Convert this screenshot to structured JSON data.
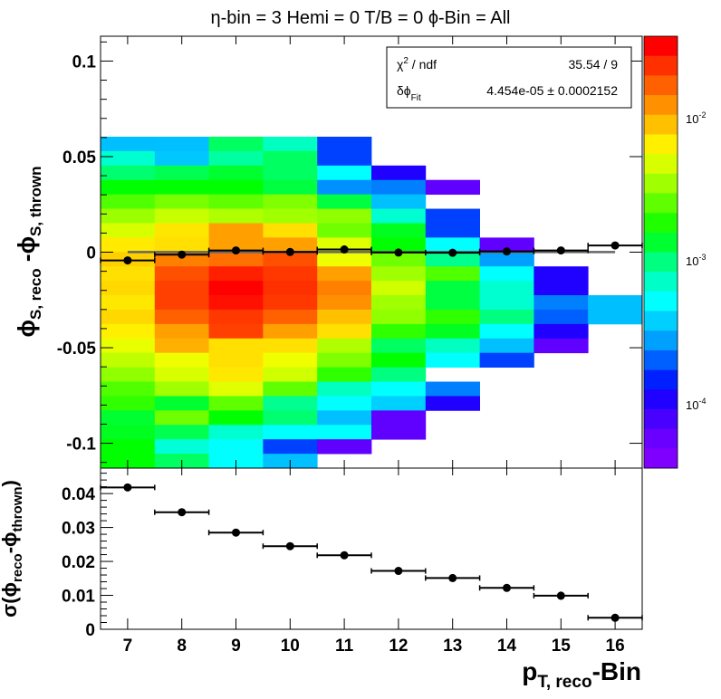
{
  "title": "η-bin = 3 Hemi = 0 T/B = 0   ϕ-Bin = All",
  "stats": {
    "row1_label": "χ² / ndf",
    "row1_value": "35.54 / 9",
    "row2_label": "δϕ_Fit",
    "row2_value": "4.454e-05  ± 0.0002152"
  },
  "colorbar": {
    "scale": "log",
    "ticks": [
      "10⁻²",
      "10⁻³",
      "10⁻⁴"
    ]
  },
  "chart_data": [
    {
      "type": "heatmap",
      "panel": "top",
      "ylabel": "ϕS, reco - ϕS, thrown",
      "xlim": [
        6.5,
        16.5
      ],
      "ylim": [
        -0.113,
        0.113
      ],
      "yticks": [
        0.1,
        0.05,
        0,
        -0.05,
        -0.1
      ],
      "ytick_labels": [
        "0.1",
        "0.05",
        "0",
        "-0.05",
        "-0.1"
      ],
      "x_bins": [
        7,
        8,
        9,
        10,
        11,
        12,
        13,
        14,
        15,
        16
      ],
      "y_bin_width": 0.00754,
      "cells": [
        [
          7,
          22,
          "#00bfff"
        ],
        [
          7,
          21,
          "#00ffd0"
        ],
        [
          7,
          20,
          "#00ff70"
        ],
        [
          7,
          19,
          "#00ff00"
        ],
        [
          7,
          18,
          "#50ff00"
        ],
        [
          7,
          17,
          "#9cff00"
        ],
        [
          7,
          16,
          "#d8ff00"
        ],
        [
          7,
          15,
          "#ffea00"
        ],
        [
          7,
          14,
          "#ffd000"
        ],
        [
          7,
          13,
          "#ffe000"
        ],
        [
          7,
          12,
          "#ffd800"
        ],
        [
          7,
          11,
          "#ffe800"
        ],
        [
          7,
          10,
          "#ffd800"
        ],
        [
          7,
          9,
          "#fff000"
        ],
        [
          7,
          8,
          "#e8ff00"
        ],
        [
          7,
          7,
          "#c0ff00"
        ],
        [
          7,
          6,
          "#90ff00"
        ],
        [
          7,
          5,
          "#50ff00"
        ],
        [
          7,
          4,
          "#30ff00"
        ],
        [
          7,
          3,
          "#00ff30"
        ],
        [
          7,
          2,
          "#00ff20"
        ],
        [
          7,
          1,
          "#00ff00"
        ],
        [
          7,
          0,
          "#00ff00"
        ],
        [
          8,
          22,
          "#00c0ff"
        ],
        [
          8,
          21,
          "#00c8ff"
        ],
        [
          8,
          20,
          "#00ff50"
        ],
        [
          8,
          19,
          "#00ff00"
        ],
        [
          8,
          18,
          "#78ff00"
        ],
        [
          8,
          17,
          "#c8ff00"
        ],
        [
          8,
          16,
          "#ffe600"
        ],
        [
          8,
          15,
          "#ffe000"
        ],
        [
          8,
          14,
          "#ff8000"
        ],
        [
          8,
          13,
          "#ff5000"
        ],
        [
          8,
          12,
          "#ff4000"
        ],
        [
          8,
          11,
          "#ff4000"
        ],
        [
          8,
          10,
          "#ff6000"
        ],
        [
          8,
          9,
          "#ffa000"
        ],
        [
          8,
          8,
          "#ffb000"
        ],
        [
          8,
          7,
          "#f0ff00"
        ],
        [
          8,
          6,
          "#d8ff00"
        ],
        [
          8,
          5,
          "#a0ff00"
        ],
        [
          8,
          4,
          "#00ff30"
        ],
        [
          8,
          3,
          "#70ff00"
        ],
        [
          8,
          2,
          "#00ff50"
        ],
        [
          8,
          1,
          "#00ffd8"
        ],
        [
          8,
          0,
          "#00ff60"
        ],
        [
          9,
          22,
          "#00ff60"
        ],
        [
          9,
          21,
          "#00ffa0"
        ],
        [
          9,
          20,
          "#00ff30"
        ],
        [
          9,
          19,
          "#00ff00"
        ],
        [
          9,
          18,
          "#60ff00"
        ],
        [
          9,
          17,
          "#b0ff00"
        ],
        [
          9,
          16,
          "#ffa000"
        ],
        [
          9,
          15,
          "#ffa000"
        ],
        [
          9,
          14,
          "#ff7000"
        ],
        [
          9,
          13,
          "#ff2000"
        ],
        [
          9,
          12,
          "#ff0000"
        ],
        [
          9,
          11,
          "#ff1000"
        ],
        [
          9,
          10,
          "#ff3800"
        ],
        [
          9,
          9,
          "#ff4000"
        ],
        [
          9,
          8,
          "#ffe000"
        ],
        [
          9,
          7,
          "#ffe000"
        ],
        [
          9,
          6,
          "#ffe800"
        ],
        [
          9,
          5,
          "#e0ff00"
        ],
        [
          9,
          4,
          "#60ff00"
        ],
        [
          9,
          3,
          "#00ff00"
        ],
        [
          9,
          2,
          "#00ffd0"
        ],
        [
          9,
          1,
          "#00ffff"
        ],
        [
          9,
          0,
          "#00ffff"
        ],
        [
          10,
          22,
          "#00ffc0"
        ],
        [
          10,
          21,
          "#00ff60"
        ],
        [
          10,
          20,
          "#00ff60"
        ],
        [
          10,
          19,
          "#00ff40"
        ],
        [
          10,
          18,
          "#80ff00"
        ],
        [
          10,
          17,
          "#a0ff00"
        ],
        [
          10,
          16,
          "#ffe000"
        ],
        [
          10,
          15,
          "#ffa000"
        ],
        [
          10,
          14,
          "#ff5000"
        ],
        [
          10,
          13,
          "#ff3800"
        ],
        [
          10,
          12,
          "#ff3000"
        ],
        [
          10,
          11,
          "#ff3800"
        ],
        [
          10,
          10,
          "#ff6000"
        ],
        [
          10,
          9,
          "#ffa000"
        ],
        [
          10,
          8,
          "#ffe000"
        ],
        [
          10,
          7,
          "#f0ff00"
        ],
        [
          10,
          6,
          "#d0ff00"
        ],
        [
          10,
          5,
          "#60ff00"
        ],
        [
          10,
          4,
          "#00ff90"
        ],
        [
          10,
          3,
          "#00ff70"
        ],
        [
          10,
          2,
          "#00ffff"
        ],
        [
          10,
          1,
          "#0040ff"
        ],
        [
          10,
          0,
          "#00c0ff"
        ],
        [
          11,
          22,
          "#0040ff"
        ],
        [
          11,
          21,
          "#0040ff"
        ],
        [
          11,
          20,
          "#00ffff"
        ],
        [
          11,
          19,
          "#0090ff"
        ],
        [
          11,
          18,
          "#00ff40"
        ],
        [
          11,
          17,
          "#90ff00"
        ],
        [
          11,
          16,
          "#70ff00"
        ],
        [
          11,
          15,
          "#e0ff00"
        ],
        [
          11,
          14,
          "#f0ff00"
        ],
        [
          11,
          13,
          "#ffa000"
        ],
        [
          11,
          12,
          "#ff8000"
        ],
        [
          11,
          11,
          "#ff9000"
        ],
        [
          11,
          10,
          "#ffc000"
        ],
        [
          11,
          9,
          "#ffe000"
        ],
        [
          11,
          8,
          "#b0ff00"
        ],
        [
          11,
          7,
          "#80ff00"
        ],
        [
          11,
          6,
          "#30ff00"
        ],
        [
          11,
          5,
          "#00ffc0"
        ],
        [
          11,
          4,
          "#00ffff"
        ],
        [
          11,
          3,
          "#00c0ff"
        ],
        [
          11,
          2,
          "#00ffff"
        ],
        [
          11,
          1,
          "#6000ff"
        ],
        [
          12,
          20,
          "#2000ff"
        ],
        [
          12,
          19,
          "#0080ff"
        ],
        [
          12,
          18,
          "#00c0ff"
        ],
        [
          12,
          17,
          "#00ffd0"
        ],
        [
          12,
          16,
          "#00ff20"
        ],
        [
          12,
          15,
          "#00ff00"
        ],
        [
          12,
          14,
          "#70ff00"
        ],
        [
          12,
          13,
          "#a0ff00"
        ],
        [
          12,
          12,
          "#d0ff00"
        ],
        [
          12,
          11,
          "#a0ff00"
        ],
        [
          12,
          10,
          "#90ff00"
        ],
        [
          12,
          9,
          "#30ff00"
        ],
        [
          12,
          8,
          "#00ff60"
        ],
        [
          12,
          7,
          "#00ff00"
        ],
        [
          12,
          6,
          "#00ff80"
        ],
        [
          12,
          5,
          "#00ffff"
        ],
        [
          12,
          4,
          "#00d0ff"
        ],
        [
          12,
          3,
          "#6000ff"
        ],
        [
          12,
          2,
          "#6000ff"
        ],
        [
          13,
          19,
          "#6000ff"
        ],
        [
          13,
          17,
          "#0040ff"
        ],
        [
          13,
          16,
          "#0040ff"
        ],
        [
          13,
          15,
          "#00ffff"
        ],
        [
          13,
          14,
          "#00ff90"
        ],
        [
          13,
          13,
          "#50ff00"
        ],
        [
          13,
          12,
          "#00ff40"
        ],
        [
          13,
          11,
          "#00ff40"
        ],
        [
          13,
          10,
          "#30ff00"
        ],
        [
          13,
          9,
          "#00ff20"
        ],
        [
          13,
          8,
          "#00ffc0"
        ],
        [
          13,
          7,
          "#00ffff"
        ],
        [
          13,
          5,
          "#0080ff"
        ],
        [
          13,
          4,
          "#2000ff"
        ],
        [
          14,
          15,
          "#6000ff"
        ],
        [
          14,
          14,
          "#00a0ff"
        ],
        [
          14,
          13,
          "#00ffff"
        ],
        [
          14,
          12,
          "#00ffd0"
        ],
        [
          14,
          11,
          "#00ffd0"
        ],
        [
          14,
          10,
          "#00ff80"
        ],
        [
          14,
          9,
          "#00ffff"
        ],
        [
          14,
          8,
          "#00c0ff"
        ],
        [
          14,
          7,
          "#0040ff"
        ],
        [
          15,
          13,
          "#2000ff"
        ],
        [
          15,
          12,
          "#2000ff"
        ],
        [
          15,
          11,
          "#0080ff"
        ],
        [
          15,
          10,
          "#0060ff"
        ],
        [
          15,
          9,
          "#2000ff"
        ],
        [
          15,
          8,
          "#6000ff"
        ],
        [
          16,
          11,
          "#00bfff"
        ],
        [
          16,
          10,
          "#00bfff"
        ]
      ],
      "profile_points": [
        {
          "x": 7,
          "y": -0.0043,
          "xerr": 0.5
        },
        {
          "x": 8,
          "y": -0.0013,
          "xerr": 0.5
        },
        {
          "x": 9,
          "y": 0.0009,
          "xerr": 0.5
        },
        {
          "x": 10,
          "y": 0.0001,
          "xerr": 0.5
        },
        {
          "x": 11,
          "y": 0.0014,
          "xerr": 0.5
        },
        {
          "x": 12,
          "y": -0.0002,
          "xerr": 0.5
        },
        {
          "x": 13,
          "y": -0.0003,
          "xerr": 0.5
        },
        {
          "x": 14,
          "y": 0.0004,
          "xerr": 0.5
        },
        {
          "x": 15,
          "y": 0.0009,
          "xerr": 0.5
        },
        {
          "x": 16,
          "y": 0.0035,
          "xerr": 0.5
        }
      ],
      "fit_line": {
        "x": [
          7.0,
          16.0
        ],
        "y": 4.45e-05,
        "color": "#666666"
      }
    },
    {
      "type": "scatter",
      "panel": "bottom",
      "xlabel": "pT, reco-Bin",
      "ylabel": "σ(ϕreco-ϕthrown)",
      "xlim": [
        6.5,
        16.5
      ],
      "ylim": [
        0,
        0.0475
      ],
      "xticks": [
        7,
        8,
        9,
        10,
        11,
        12,
        13,
        14,
        15,
        16
      ],
      "xtick_labels": [
        "7",
        "8",
        "9",
        "10",
        "11",
        "12",
        "13",
        "14",
        "15",
        "16"
      ],
      "yticks": [
        0,
        0.01,
        0.02,
        0.03,
        0.04
      ],
      "ytick_labels": [
        "0",
        "0.01",
        "0.02",
        "0.03",
        "0.04"
      ],
      "points": [
        {
          "x": 7,
          "y": 0.0418,
          "xerr": 0.5,
          "yerr": 0.0004
        },
        {
          "x": 8,
          "y": 0.0345,
          "xerr": 0.5,
          "yerr": 0.0004
        },
        {
          "x": 9,
          "y": 0.0285,
          "xerr": 0.5,
          "yerr": 0.0004
        },
        {
          "x": 10,
          "y": 0.0245,
          "xerr": 0.5,
          "yerr": 0.0004
        },
        {
          "x": 11,
          "y": 0.0218,
          "xerr": 0.5,
          "yerr": 0.0004
        },
        {
          "x": 12,
          "y": 0.0172,
          "xerr": 0.5,
          "yerr": 0.0004
        },
        {
          "x": 13,
          "y": 0.0151,
          "xerr": 0.5,
          "yerr": 0.0004
        },
        {
          "x": 14,
          "y": 0.0122,
          "xerr": 0.5,
          "yerr": 0.0004
        },
        {
          "x": 15,
          "y": 0.0099,
          "xerr": 0.5,
          "yerr": 0.0012
        },
        {
          "x": 16,
          "y": 0.0034,
          "xerr": 0.5,
          "yerr": 0.0004
        }
      ]
    }
  ]
}
